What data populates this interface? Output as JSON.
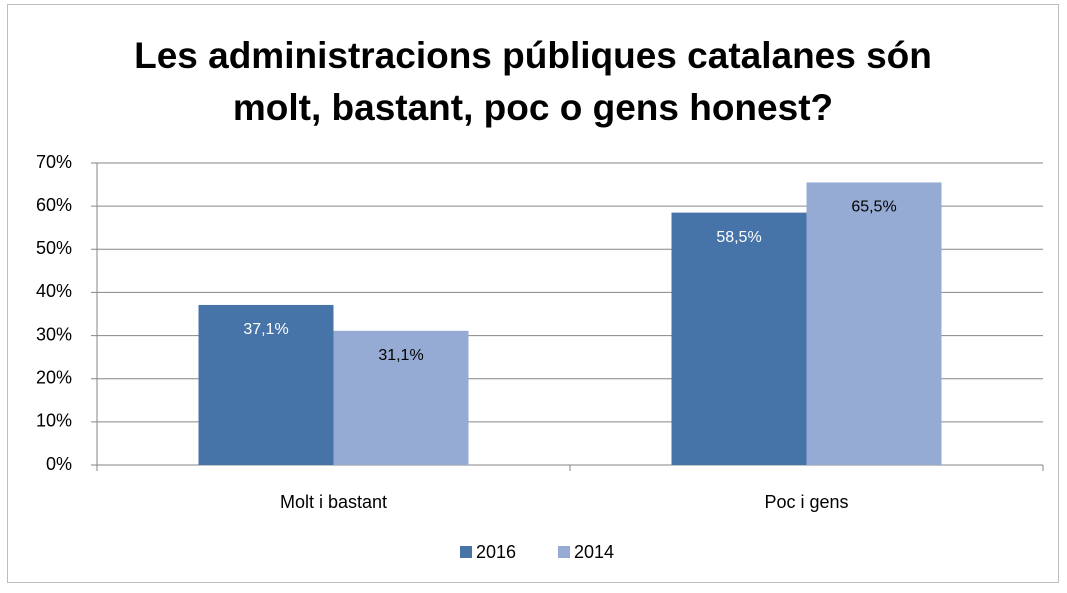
{
  "chart_data": {
    "type": "bar",
    "title": [
      "Les administracions públiques catalanes són",
      "molt, bastant, poc o gens honest?"
    ],
    "categories": [
      "Molt i bastant",
      "Poc i gens"
    ],
    "series": [
      {
        "name": "2016",
        "color": "#4674a8",
        "values": [
          37.1,
          58.5
        ],
        "value_labels": [
          "37,1%",
          "58,5%"
        ]
      },
      {
        "name": "2014",
        "color": "#96abd3",
        "values": [
          31.1,
          65.5
        ],
        "value_labels": [
          "31,1%",
          "65,5%"
        ]
      }
    ],
    "ylim": [
      0,
      70
    ],
    "yticks": [
      {
        "value": 0,
        "label": "0%"
      },
      {
        "value": 10,
        "label": "10%"
      },
      {
        "value": 20,
        "label": "20%"
      },
      {
        "value": 30,
        "label": "30%"
      },
      {
        "value": 40,
        "label": "40%"
      },
      {
        "value": 50,
        "label": "50%"
      },
      {
        "value": 60,
        "label": "60%"
      },
      {
        "value": 70,
        "label": "70%"
      }
    ],
    "grid": true,
    "legend": "bottom"
  }
}
